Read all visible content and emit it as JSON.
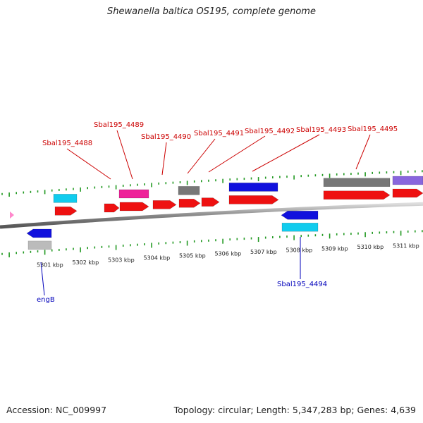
{
  "title": "Shewanella baltica OS195, complete genome",
  "footer": {
    "accession": "Accession: NC_009997",
    "stats": "Topology: circular; Length: 5,347,283 bp; Genes: 4,639"
  },
  "colors": {
    "cds_red": "#ee1111",
    "cds_blue": "#1111dd",
    "cds_cyan": "#11ccee",
    "cds_magenta": "#ee2299",
    "cds_gray": "#777777",
    "cds_lightgray": "#bbbbbb",
    "cds_violet": "#8866dd",
    "tick_green": "#229922",
    "backbone": "#888888",
    "label_red": "#cc0000",
    "label_blue": "#0000bb",
    "marker_pink": "#ff88cc"
  },
  "scale": {
    "unit": "kbp",
    "ticks": [
      {
        "kbp": 5301,
        "label": "5301 kbp"
      },
      {
        "kbp": 5302,
        "label": "5302 kbp"
      },
      {
        "kbp": 5303,
        "label": "5303 kbp"
      },
      {
        "kbp": 5304,
        "label": "5304 kbp"
      },
      {
        "kbp": 5305,
        "label": "5305 kbp"
      },
      {
        "kbp": 5306,
        "label": "5306 kbp"
      },
      {
        "kbp": 5307,
        "label": "5307 kbp"
      },
      {
        "kbp": 5308,
        "label": "5308 kbp"
      },
      {
        "kbp": 5309,
        "label": "5309 kbp"
      },
      {
        "kbp": 5310,
        "label": "5310 kbp"
      },
      {
        "kbp": 5311,
        "label": "5311 kbp"
      }
    ]
  },
  "genes": [
    {
      "name": "engB",
      "color": "cds_blue",
      "label_color": "label_blue",
      "side": "below"
    },
    {
      "name": "Sbal195_4488",
      "color": "cds_red",
      "label_color": "label_red",
      "side": "above"
    },
    {
      "name": "Sbal195_4489",
      "color": "cds_red",
      "label_color": "label_red",
      "side": "above"
    },
    {
      "name": "Sbal195_4490",
      "color": "cds_red",
      "label_color": "label_red",
      "side": "above"
    },
    {
      "name": "Sbal195_4491",
      "color": "cds_red",
      "label_color": "label_red",
      "side": "above"
    },
    {
      "name": "Sbal195_4492",
      "color": "cds_red",
      "label_color": "label_red",
      "side": "above"
    },
    {
      "name": "Sbal195_4493",
      "color": "cds_red",
      "label_color": "label_red",
      "side": "above"
    },
    {
      "name": "Sbal195_4494",
      "color": "cds_blue",
      "label_color": "label_blue",
      "side": "below"
    },
    {
      "name": "Sbal195_4495",
      "color": "cds_red",
      "label_color": "label_red",
      "side": "above"
    }
  ]
}
